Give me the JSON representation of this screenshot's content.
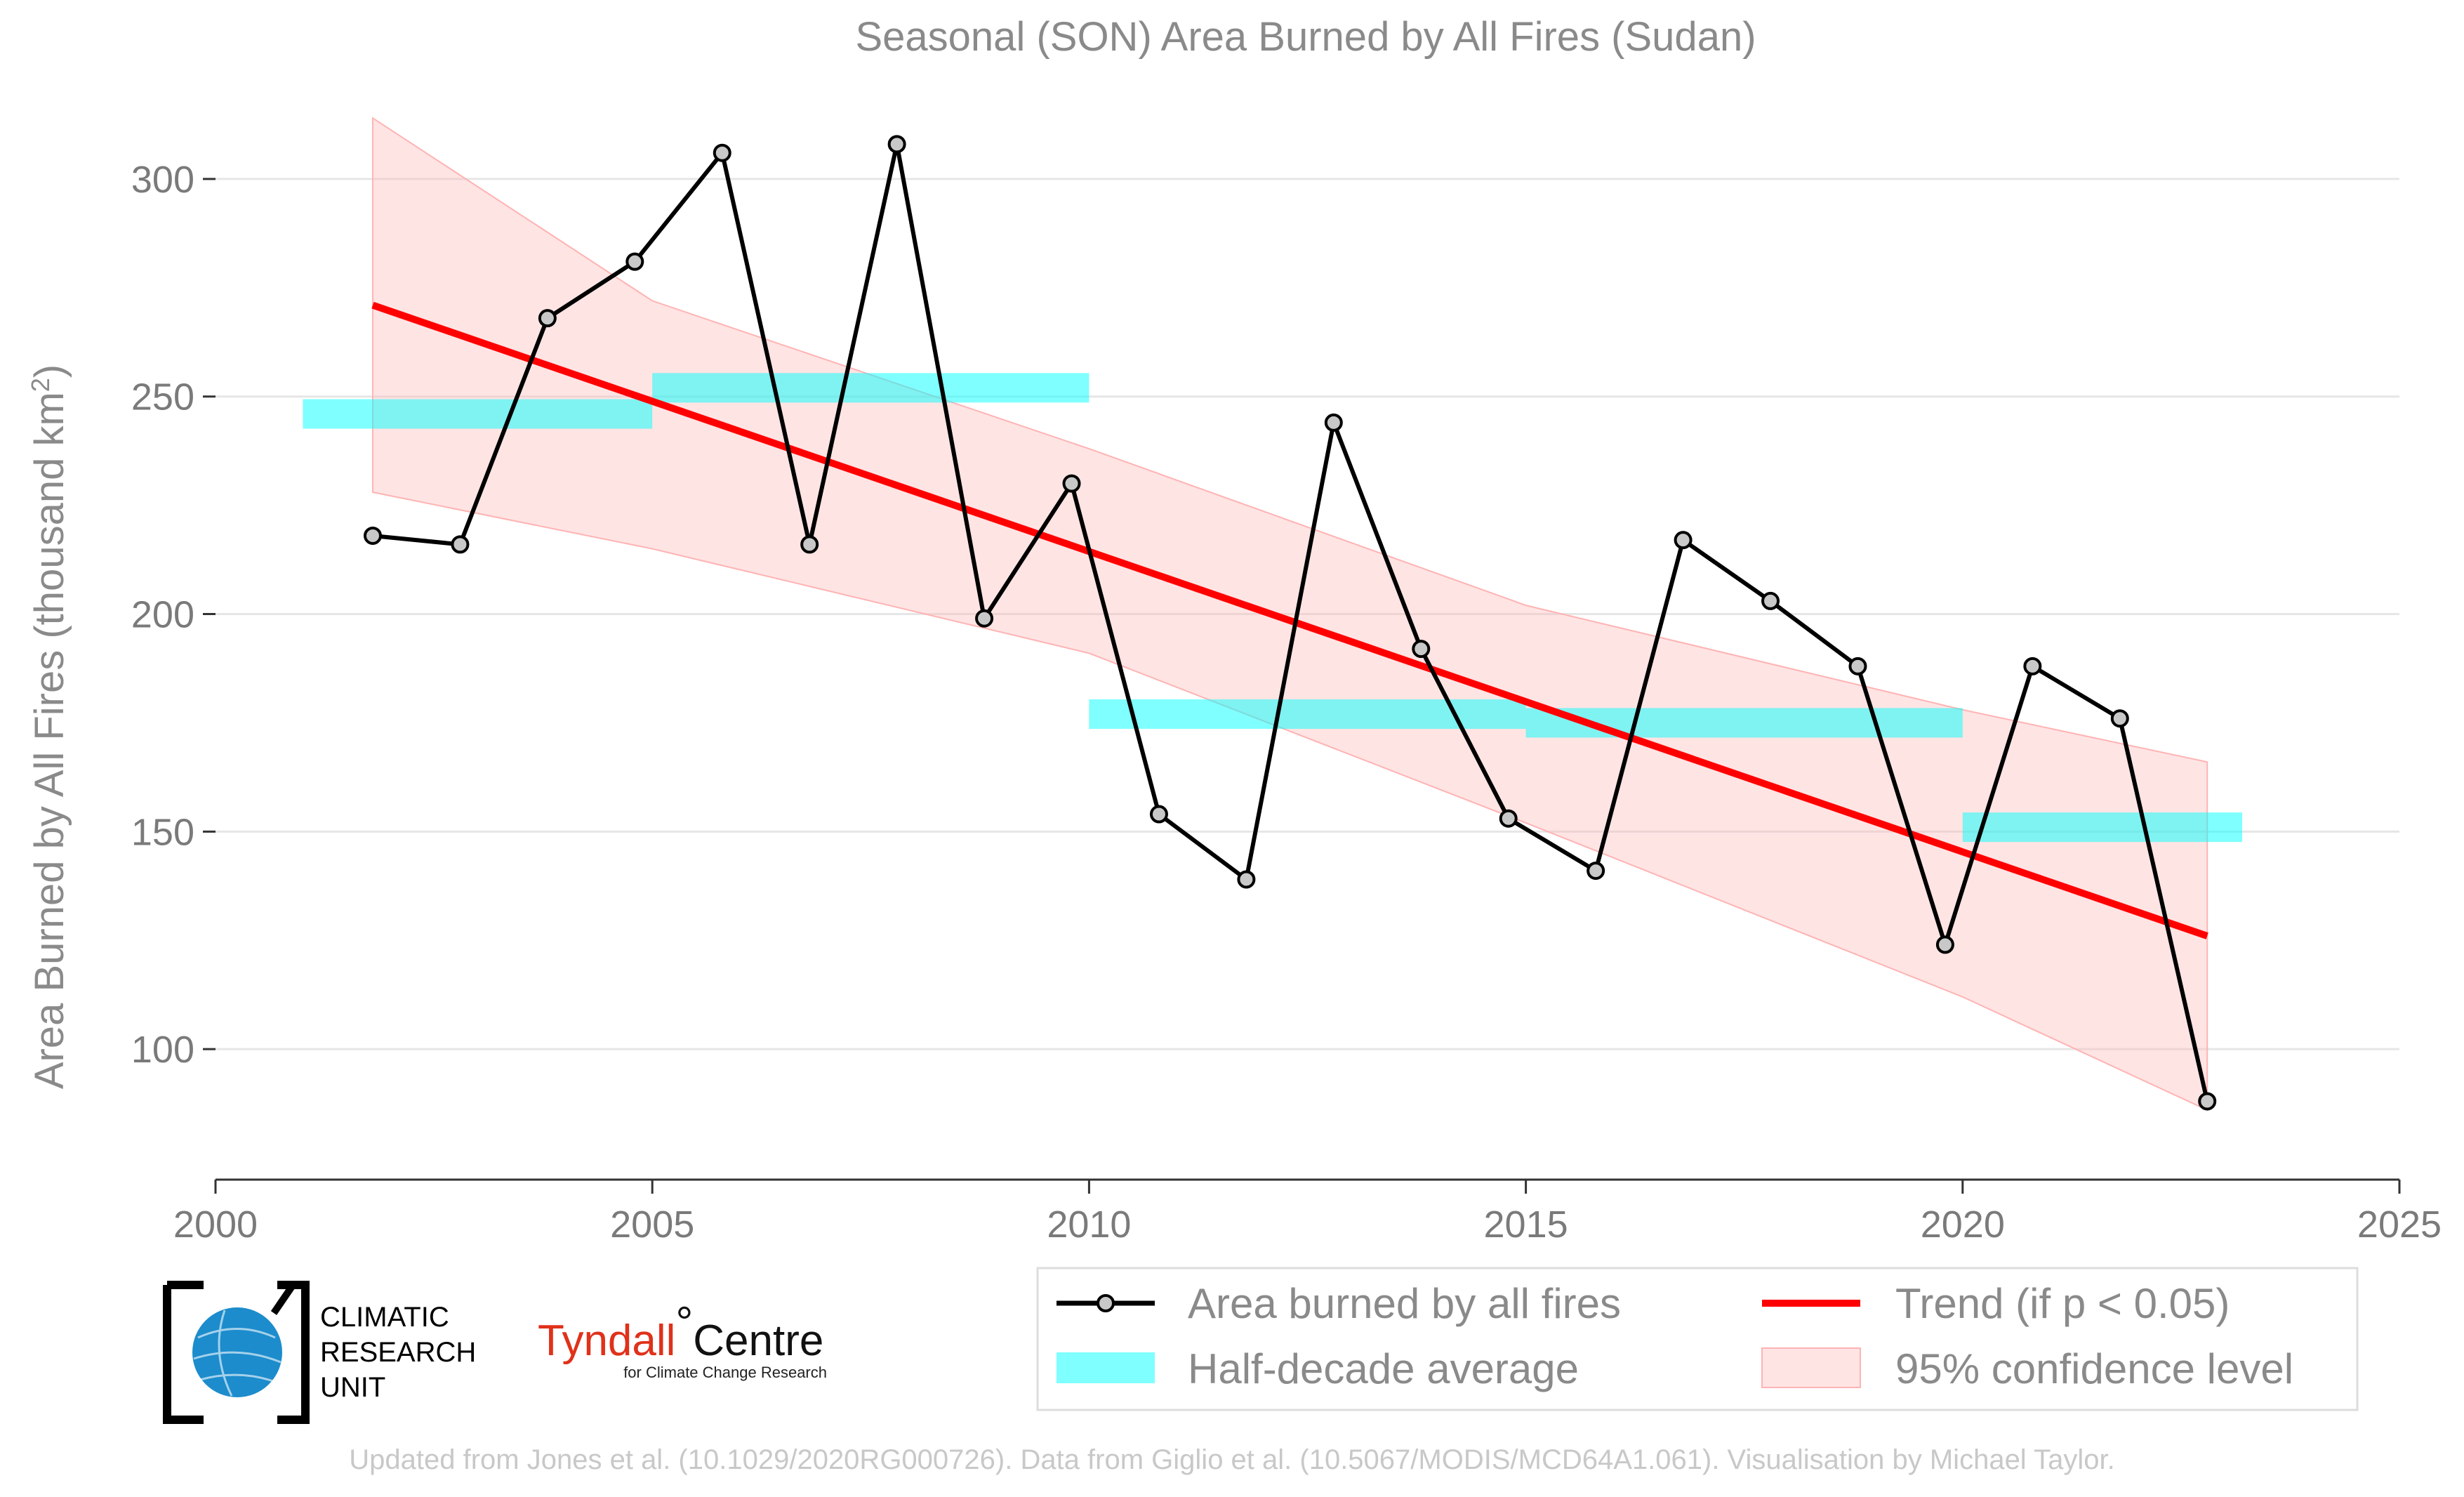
{
  "chart_data": {
    "type": "line",
    "title": "Seasonal (SON) Area Burned by All Fires (Sudan)",
    "ylabel_main": "Area Burned by All Fires (thousand km",
    "ylabel_sup": "2",
    "ylabel_end": ")",
    "xlim": [
      2000,
      2025
    ],
    "ylim": [
      70,
      325
    ],
    "x_ticks": [
      "2000",
      "2005",
      "2010",
      "2015",
      "2020",
      "2025"
    ],
    "y_ticks": [
      "100",
      "150",
      "200",
      "250",
      "300"
    ],
    "grid": "horizontal",
    "legend_position": "bottom-right",
    "series": [
      {
        "name": "Area burned by all fires",
        "color": "#000000",
        "x": [
          2001.8,
          2002.8,
          2003.8,
          2004.8,
          2005.8,
          2006.8,
          2007.8,
          2008.8,
          2009.8,
          2010.8,
          2011.8,
          2012.8,
          2013.8,
          2014.8,
          2015.8,
          2016.8,
          2017.8,
          2018.8,
          2019.8,
          2020.8,
          2021.8,
          2022.8
        ],
        "y": [
          218,
          216,
          268,
          281,
          306,
          216,
          308,
          199,
          230,
          154,
          139,
          244,
          192,
          153,
          141,
          217,
          203,
          188,
          124,
          188,
          176,
          88
        ]
      },
      {
        "name": "Half-decade average",
        "color": "#00ffff",
        "segments": [
          {
            "x0": 2001,
            "x1": 2005,
            "y": 246
          },
          {
            "x0": 2005,
            "x1": 2010,
            "y": 252
          },
          {
            "x0": 2010,
            "x1": 2015,
            "y": 177
          },
          {
            "x0": 2015,
            "x1": 2020,
            "y": 175
          },
          {
            "x0": 2020,
            "x1": 2023.2,
            "y": 151
          }
        ]
      },
      {
        "name": "Trend (if p < 0.05)",
        "color": "#ff0000",
        "x": [
          2001.8,
          2022.8
        ],
        "y": [
          271,
          126
        ]
      },
      {
        "name": "95% confidence level",
        "color": "#ffb3b3",
        "x": [
          2001.8,
          2005,
          2010,
          2015,
          2020,
          2022.8
        ],
        "upper": [
          314,
          272,
          238,
          202,
          178,
          166
        ],
        "lower": [
          228,
          215,
          191,
          152,
          112,
          86
        ]
      }
    ],
    "legend": {
      "entries": [
        "Area burned by all fires",
        "Trend (if p < 0.05)",
        "Half-decade average",
        "95% confidence level"
      ]
    }
  },
  "logos": {
    "cru_lines": [
      "CLIMATIC",
      "RESEARCH",
      "UNIT"
    ],
    "tyndall_main": "Tyndall",
    "tyndall_deg": "°",
    "tyndall_centre": "Centre",
    "tyndall_sub": "for Climate Change Research"
  },
  "credit": "Updated from Jones et al. (10.1029/2020RG000726). Data from Giglio et al. (10.5067/MODIS/MCD64A1.061). Visualisation by Michael Taylor."
}
